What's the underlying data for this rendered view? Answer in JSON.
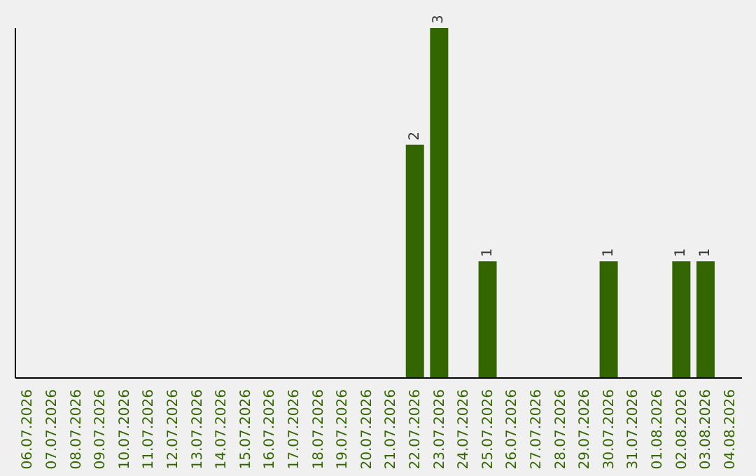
{
  "chart_data": {
    "type": "bar",
    "categories": [
      "06.07.2026",
      "07.07.2026",
      "08.07.2026",
      "09.07.2026",
      "10.07.2026",
      "11.07.2026",
      "12.07.2026",
      "13.07.2026",
      "14.07.2026",
      "15.07.2026",
      "16.07.2026",
      "17.07.2026",
      "18.07.2026",
      "19.07.2026",
      "20.07.2026",
      "21.07.2026",
      "22.07.2026",
      "23.07.2026",
      "24.07.2026",
      "25.07.2026",
      "26.07.2026",
      "27.07.2026",
      "28.07.2026",
      "29.07.2026",
      "30.07.2026",
      "31.07.2026",
      "01.08.2026",
      "02.08.2026",
      "03.08.2026",
      "04.08.2026"
    ],
    "values": [
      null,
      null,
      null,
      null,
      null,
      null,
      null,
      null,
      null,
      null,
      null,
      null,
      null,
      null,
      null,
      null,
      2,
      3,
      null,
      1,
      null,
      null,
      null,
      null,
      1,
      null,
      null,
      1,
      1,
      null
    ],
    "color": "#336600",
    "data_labels": true
  }
}
